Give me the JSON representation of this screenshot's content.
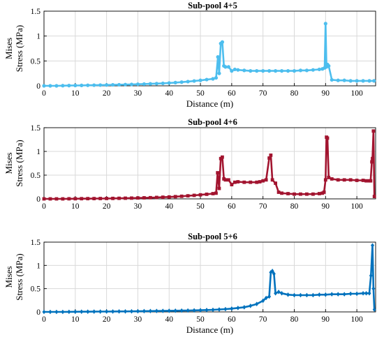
{
  "chart_data": [
    {
      "type": "line",
      "title": "Sub-pool 4+5",
      "xlabel": "Distance (m)",
      "ylabel": [
        "Mises",
        "Stress (MPa)"
      ],
      "xlim": [
        0,
        106
      ],
      "ylim": [
        0,
        1.5
      ],
      "xticks": [
        "0",
        "10",
        "20",
        "30",
        "40",
        "50",
        "60",
        "70",
        "80",
        "90",
        "100"
      ],
      "yticks": [
        "0",
        "0.5",
        "1",
        "1.5"
      ],
      "grid": true,
      "series": [
        {
          "color": "#4DBEEE",
          "marker": "circle",
          "x": [
            0,
            2,
            4,
            6,
            8,
            10,
            12,
            14,
            16,
            18,
            20,
            22,
            24,
            26,
            28,
            30,
            32,
            34,
            36,
            38,
            40,
            42,
            44,
            46,
            48,
            50,
            52,
            54,
            55,
            55.6,
            56,
            56.5,
            57,
            57.5,
            58,
            59,
            60,
            61,
            62,
            64,
            66,
            68,
            70,
            72,
            74,
            76,
            78,
            80,
            82,
            84,
            86,
            88,
            89,
            89.7,
            90,
            90.3,
            90.6,
            91,
            92,
            94,
            96,
            98,
            100,
            102,
            104,
            105.5
          ],
          "y": [
            0,
            0,
            0,
            0.003,
            0.005,
            0.007,
            0.009,
            0.011,
            0.013,
            0.015,
            0.017,
            0.02,
            0.022,
            0.025,
            0.028,
            0.032,
            0.036,
            0.04,
            0.045,
            0.05,
            0.057,
            0.065,
            0.074,
            0.085,
            0.097,
            0.11,
            0.125,
            0.14,
            0.16,
            0.58,
            0.25,
            0.85,
            0.88,
            0.4,
            0.38,
            0.38,
            0.3,
            0.33,
            0.32,
            0.31,
            0.3,
            0.3,
            0.3,
            0.3,
            0.3,
            0.3,
            0.3,
            0.3,
            0.31,
            0.31,
            0.32,
            0.33,
            0.34,
            0.36,
            1.25,
            0.38,
            0.43,
            0.4,
            0.12,
            0.11,
            0.11,
            0.1,
            0.1,
            0.1,
            0.1,
            0.1
          ]
        }
      ]
    },
    {
      "type": "line",
      "title": "Sub-pool 4+6",
      "xlabel": "",
      "ylabel": [
        "Mises",
        "Stress (MPa)"
      ],
      "xlim": [
        0,
        106
      ],
      "ylim": [
        0,
        1.5
      ],
      "xticks": [
        "0",
        "10",
        "20",
        "30",
        "40",
        "50",
        "60",
        "70",
        "80",
        "90",
        "100"
      ],
      "yticks": [
        "0",
        "0.5",
        "1",
        "1.5"
      ],
      "grid": true,
      "series": [
        {
          "color": "#A2142F",
          "marker": "square",
          "x": [
            0,
            2,
            4,
            6,
            8,
            10,
            12,
            14,
            16,
            18,
            20,
            22,
            24,
            26,
            28,
            30,
            32,
            34,
            36,
            38,
            40,
            42,
            44,
            46,
            48,
            50,
            52,
            54,
            55,
            55.5,
            56,
            56.5,
            57,
            57.5,
            58,
            59,
            60,
            61,
            62,
            64,
            66,
            68,
            69,
            70,
            71,
            72,
            72.5,
            73,
            74,
            75,
            76,
            78,
            80,
            82,
            84,
            86,
            88,
            89,
            89.5,
            90,
            90.3,
            90.6,
            91,
            92,
            94,
            96,
            98,
            100,
            102,
            103,
            104,
            104.4,
            104.8,
            105,
            105.3,
            105.6
          ],
          "y": [
            0,
            0,
            0,
            0,
            0.002,
            0.003,
            0.004,
            0.005,
            0.006,
            0.007,
            0.008,
            0.01,
            0.012,
            0.014,
            0.016,
            0.019,
            0.022,
            0.025,
            0.03,
            0.035,
            0.04,
            0.047,
            0.055,
            0.064,
            0.074,
            0.085,
            0.097,
            0.11,
            0.12,
            0.55,
            0.22,
            0.85,
            0.88,
            0.42,
            0.4,
            0.4,
            0.3,
            0.35,
            0.36,
            0.35,
            0.35,
            0.35,
            0.36,
            0.38,
            0.4,
            0.86,
            0.92,
            0.4,
            0.33,
            0.14,
            0.12,
            0.11,
            0.1,
            0.1,
            0.1,
            0.1,
            0.11,
            0.12,
            0.14,
            0.4,
            1.3,
            1.28,
            0.45,
            0.42,
            0.4,
            0.4,
            0.4,
            0.39,
            0.39,
            0.38,
            0.38,
            0.38,
            0.78,
            0.85,
            1.43,
            0.05
          ]
        }
      ]
    },
    {
      "type": "line",
      "title": "Sub-pool 5+6",
      "xlabel": "Distance (m)",
      "ylabel": [
        "Mises",
        "Stress (MPa)"
      ],
      "xlim": [
        0,
        106
      ],
      "ylim": [
        0,
        1.5
      ],
      "xticks": [
        "0",
        "10",
        "20",
        "30",
        "40",
        "50",
        "60",
        "70",
        "80",
        "90",
        "100"
      ],
      "yticks": [
        "0",
        "0.5",
        "1",
        "1.5"
      ],
      "grid": true,
      "series": [
        {
          "color": "#0072BD",
          "marker": "diamond",
          "x": [
            0,
            2,
            4,
            6,
            8,
            10,
            12,
            14,
            16,
            18,
            20,
            22,
            24,
            26,
            28,
            30,
            32,
            34,
            36,
            38,
            40,
            42,
            44,
            46,
            48,
            50,
            52,
            54,
            56,
            58,
            60,
            62,
            64,
            66,
            68,
            70,
            71,
            72,
            72.5,
            73,
            73.5,
            74,
            75,
            76,
            78,
            80,
            82,
            84,
            86,
            88,
            90,
            92,
            94,
            96,
            98,
            100,
            102,
            103,
            104,
            104.5,
            105,
            105.3,
            105.6
          ],
          "y": [
            0,
            0,
            0,
            0,
            0.002,
            0.003,
            0.004,
            0.005,
            0.006,
            0.007,
            0.008,
            0.009,
            0.01,
            0.011,
            0.012,
            0.014,
            0.016,
            0.018,
            0.02,
            0.022,
            0.024,
            0.026,
            0.028,
            0.03,
            0.033,
            0.036,
            0.04,
            0.045,
            0.052,
            0.06,
            0.07,
            0.085,
            0.1,
            0.13,
            0.17,
            0.24,
            0.3,
            0.33,
            0.85,
            0.88,
            0.82,
            0.4,
            0.43,
            0.4,
            0.37,
            0.36,
            0.36,
            0.36,
            0.36,
            0.37,
            0.37,
            0.38,
            0.38,
            0.38,
            0.39,
            0.39,
            0.4,
            0.4,
            0.4,
            0.78,
            1.43,
            0.5,
            0.05
          ]
        }
      ]
    }
  ]
}
